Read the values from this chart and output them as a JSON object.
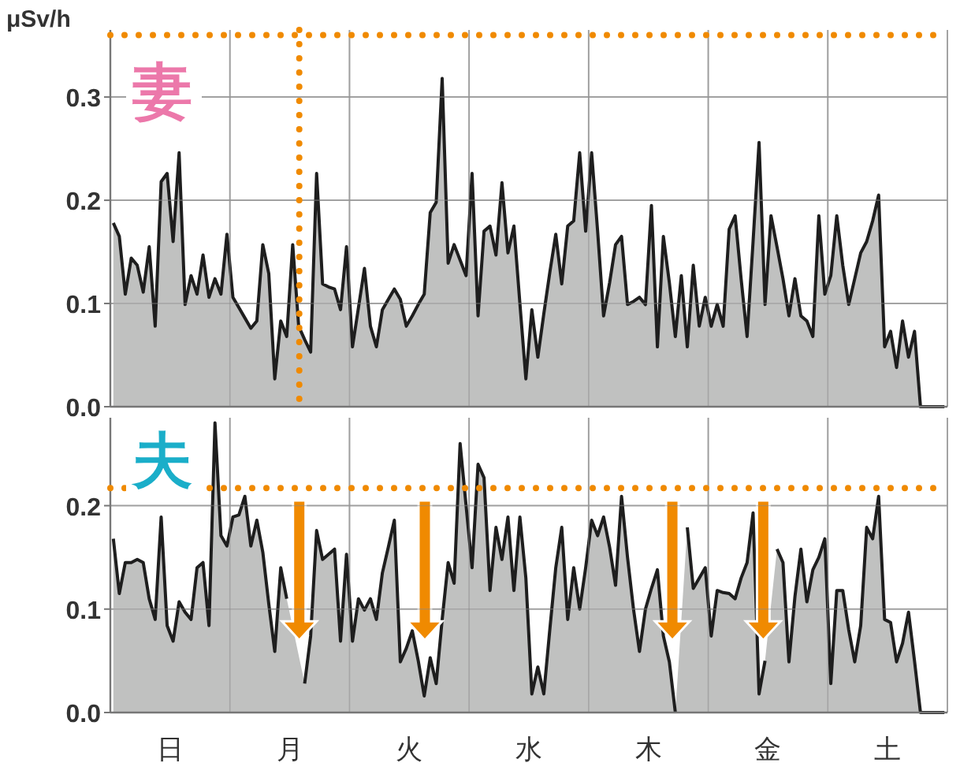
{
  "chart_data": [
    {
      "type": "area",
      "title": "妻",
      "ylabel": "μSv/h",
      "categories": [
        null,
        null,
        null,
        null,
        null,
        null,
        null,
        null,
        null,
        null,
        null,
        null,
        null,
        null,
        null,
        null,
        null,
        null,
        null,
        null,
        null,
        null,
        null,
        null,
        null,
        null,
        null,
        null,
        null,
        null,
        null,
        null,
        null,
        null,
        null,
        null,
        null,
        null,
        null,
        null,
        null,
        null,
        null,
        null,
        null,
        null,
        null,
        null,
        null,
        null,
        null,
        null,
        null,
        null,
        null,
        null,
        null,
        null,
        null,
        null,
        null,
        null,
        null,
        null,
        null,
        null,
        null,
        null,
        null,
        null,
        null,
        null,
        null,
        null,
        null,
        null,
        null,
        null,
        null,
        null,
        null,
        null,
        null,
        null,
        null,
        null,
        null,
        null,
        null,
        null,
        null,
        null,
        null,
        null,
        null,
        null,
        null,
        null,
        null,
        null,
        null,
        null,
        null,
        null,
        null,
        null,
        null,
        null,
        null,
        null,
        null,
        null,
        null,
        null,
        null,
        null,
        null,
        null,
        null,
        null,
        null,
        null,
        null,
        null,
        null,
        null,
        null,
        null,
        null,
        null,
        null,
        null,
        null,
        null,
        null,
        null,
        null,
        null,
        null,
        null
      ],
      "ylim": [
        0,
        0.365
      ],
      "yticks": [
        {
          "value": 0,
          "label": "0.0"
        },
        {
          "value": 0.1,
          "label": "0.1"
        },
        {
          "value": 0.2,
          "label": "0.2"
        },
        {
          "value": 0.3,
          "label": "0.3"
        }
      ],
      "tick_labels": "y",
      "grid": true,
      "ref_lines": [
        {
          "axis": "y",
          "value": 0.36,
          "color": "#f08a00",
          "line_style": "dotted"
        }
      ],
      "series": [
        {
          "color": "#c0c1c0",
          "values": [
            0.178,
            0.165,
            0.109,
            0.144,
            0.137,
            0.111,
            0.155,
            0.078,
            0.218,
            0.226,
            0.16,
            0.246,
            0.099,
            0.127,
            0.109,
            0.147,
            0.106,
            0.124,
            0.109,
            0.167,
            0.106,
            0.096,
            0.086,
            0.076,
            0.083,
            0.157,
            0.129,
            0.027,
            0.083,
            0.068,
            0.157,
            0.078,
            0.065,
            0.053,
            0.226,
            0.119,
            0.116,
            0.114,
            0.094,
            0.155,
            0.058,
            0.096,
            0.134,
            0.078,
            0.058,
            0.094,
            0.104,
            0.114,
            0.104,
            0.078,
            0.088,
            0.099,
            0.109,
            0.188,
            0.198,
            0.318,
            0.139,
            0.157,
            0.142,
            0.127,
            0.226,
            0.088,
            0.17,
            0.175,
            0.147,
            0.217,
            0.149,
            0.175,
            0.1,
            0.027,
            0.094,
            0.048,
            0.09,
            0.13,
            0.167,
            0.119,
            0.175,
            0.18,
            0.246,
            0.17,
            0.246,
            0.17,
            0.088,
            0.12,
            0.157,
            0.165,
            0.099,
            0.102,
            0.106,
            0.099,
            0.195,
            0.058,
            0.165,
            0.12,
            0.068,
            0.127,
            0.058,
            0.137,
            0.078,
            0.106,
            0.078,
            0.099,
            0.078,
            0.172,
            0.185,
            0.124,
            0.068,
            0.16,
            0.256,
            0.099,
            0.185,
            0.155,
            0.124,
            0.088,
            0.124,
            0.088,
            0.083,
            0.068,
            0.185,
            0.109,
            0.127,
            0.185,
            0.137,
            0.099,
            0.124,
            0.149,
            0.16,
            0.18,
            0.205,
            0.058,
            0.073,
            0.038,
            0.083,
            0.048,
            0.073,
            0,
            0,
            0,
            0,
            0
          ]
        }
      ]
    },
    {
      "type": "area",
      "title": "夫",
      "categories": [
        null,
        null,
        null,
        null,
        null,
        null,
        null,
        null,
        null,
        null,
        "日",
        null,
        null,
        null,
        null,
        null,
        null,
        null,
        null,
        null,
        null,
        null,
        null,
        null,
        null,
        null,
        null,
        null,
        null,
        null,
        "月",
        null,
        null,
        null,
        null,
        null,
        null,
        null,
        null,
        null,
        null,
        null,
        null,
        null,
        null,
        null,
        null,
        null,
        null,
        null,
        "火",
        null,
        null,
        null,
        null,
        null,
        null,
        null,
        null,
        null,
        null,
        null,
        null,
        null,
        null,
        null,
        null,
        null,
        null,
        null,
        "水",
        null,
        null,
        null,
        null,
        null,
        null,
        null,
        null,
        null,
        null,
        null,
        null,
        null,
        null,
        null,
        null,
        null,
        null,
        null,
        "木",
        null,
        null,
        null,
        null,
        null,
        null,
        null,
        null,
        null,
        null,
        null,
        null,
        null,
        null,
        null,
        null,
        null,
        null,
        null,
        "金",
        null,
        null,
        null,
        null,
        null,
        null,
        null,
        null,
        null,
        null,
        null,
        null,
        null,
        null,
        null,
        null,
        null,
        null,
        null,
        "土",
        null,
        null,
        null,
        null,
        null,
        null,
        null,
        null,
        null
      ],
      "ylim": [
        0,
        0.285
      ],
      "yticks": [
        {
          "value": 0,
          "label": "0.0"
        },
        {
          "value": 0.1,
          "label": "0.1"
        },
        {
          "value": 0.2,
          "label": "0.2"
        }
      ],
      "grid": true,
      "ref_lines": [
        {
          "axis": "y",
          "value": 0.217,
          "color": "#f08a00",
          "line_style": "dotted"
        }
      ],
      "series": [
        {
          "color": "#c0c1c0",
          "values": [
            0.168,
            0.115,
            0.145,
            0.145,
            0.148,
            0.145,
            0.11,
            0.09,
            0.189,
            0.084,
            0.069,
            0.107,
            0.097,
            0.09,
            0.14,
            0.145,
            0.084,
            0.28,
            0.171,
            0.161,
            0.189,
            0.191,
            0.209,
            0.161,
            0.186,
            0.155,
            0.105,
            0.059,
            0.14,
            0.11,
            null,
            null,
            0.028,
            0.074,
            0.176,
            0.148,
            0.153,
            0.158,
            0.069,
            0.153,
            0.069,
            0.11,
            0.099,
            0.11,
            0.09,
            0.135,
            0.16,
            0.186,
            0.049,
            0.062,
            0.079,
            0.05,
            0.016,
            0.053,
            0.028,
            0.09,
            0.145,
            0.125,
            0.26,
            0.2,
            0.14,
            0.24,
            0.227,
            0.118,
            0.179,
            0.148,
            0.189,
            0.118,
            0.189,
            0.13,
            0.018,
            0.044,
            0.018,
            0.08,
            0.14,
            0.179,
            0.09,
            0.14,
            0.1,
            0.14,
            0.186,
            0.171,
            0.189,
            0.16,
            0.123,
            0.209,
            0.15,
            0.1,
            0.059,
            0.1,
            0.12,
            0.138,
            0.074,
            0.049,
            0,
            null,
            0.179,
            0.12,
            0.13,
            0.14,
            0.074,
            0.118,
            0.116,
            0.115,
            0.11,
            0.13,
            0.145,
            0.193,
            0.018,
            0.05,
            null,
            0.158,
            0.145,
            0.049,
            0.112,
            0.158,
            0.107,
            0.138,
            0.15,
            0.168,
            0.028,
            0.118,
            0.118,
            0.08,
            0.049,
            0.084,
            0.179,
            0.168,
            0.209,
            0.09,
            0.087,
            0.049,
            0.067,
            0.097,
            0.05,
            0,
            0,
            0,
            0,
            0
          ]
        }
      ]
    }
  ]
}
